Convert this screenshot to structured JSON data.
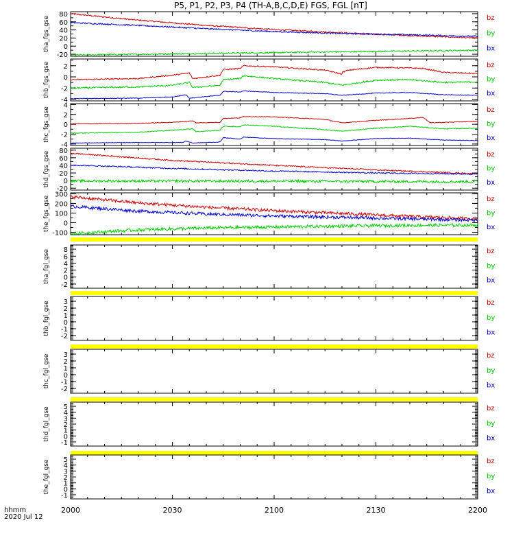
{
  "chart_data": {
    "type": "line",
    "title": "P5, P1, P2, P3, P4 (TH-A,B,C,D,E) FGS, FGL [nT]",
    "xlabel": "hhmm",
    "date_label": "2020 Jul 12",
    "x_ticks": [
      "2000",
      "2030",
      "2100",
      "2130",
      "2200"
    ],
    "x_range_minutes": [
      0,
      120
    ],
    "legend": [
      {
        "name": "bz",
        "color": "#cc0000"
      },
      {
        "name": "by",
        "color": "#00cc00"
      },
      {
        "name": "bx",
        "color": "#0000cc"
      }
    ],
    "panels": [
      {
        "ylabel": "tha_fgs_gse",
        "ylim": [
          -25,
          85
        ],
        "yticks": [
          "80",
          "60",
          "40",
          "20",
          "0",
          "-20"
        ],
        "yticks_val": [
          80,
          60,
          40,
          20,
          0,
          -20
        ],
        "series": [
          {
            "name": "bz",
            "color": "#cc0000",
            "noise": 0.2,
            "x": [
              0,
              20,
              40,
              60,
              80,
              100,
              120
            ],
            "y": [
              80,
              64,
              51,
              41,
              33,
              26,
              20
            ]
          },
          {
            "name": "by",
            "color": "#00cc00",
            "noise": 0.2,
            "x": [
              0,
              120
            ],
            "y": [
              -22,
              -10
            ]
          },
          {
            "name": "bx",
            "color": "#0000cc",
            "noise": 0.2,
            "x": [
              0,
              20,
              40,
              60,
              80,
              100,
              120
            ],
            "y": [
              58,
              51,
              43,
              36,
              31,
              28,
              24
            ]
          }
        ]
      },
      {
        "ylabel": "thb_fgs_gse",
        "ylim": [
          -4.3,
          3.2
        ],
        "yticks": [
          "2",
          "0",
          "-2",
          "-4"
        ],
        "yticks_val": [
          2,
          0,
          -2,
          -4
        ],
        "series": [
          {
            "name": "bz",
            "color": "#cc0000",
            "noise": 0.18,
            "x": [
              0,
              20,
              30,
              35,
              36,
              44,
              45,
              50,
              51,
              60,
              75,
              80,
              76,
              82,
              90,
              100,
              104,
              110,
              120
            ],
            "y": [
              -0.5,
              -0.3,
              0.3,
              0.7,
              -0.3,
              0.3,
              1.3,
              1.5,
              2.0,
              1.8,
              1.2,
              0.5,
              0.1,
              1.2,
              1.7,
              1.6,
              1.5,
              0.8,
              0.6
            ]
          },
          {
            "name": "by",
            "color": "#00cc00",
            "noise": 0.22,
            "x": [
              0,
              20,
              30,
              35,
              36,
              44,
              45,
              50,
              51,
              60,
              75,
              80,
              90,
              100,
              110,
              120
            ],
            "y": [
              -2.0,
              -1.8,
              -1.5,
              -1.0,
              -1.9,
              -1.5,
              -0.5,
              -0.3,
              0.2,
              -0.3,
              -1.0,
              -1.5,
              -0.6,
              -0.5,
              -1.0,
              -0.9
            ]
          },
          {
            "name": "bx",
            "color": "#0000cc",
            "noise": 0.1,
            "x": [
              0,
              20,
              30,
              34,
              35,
              44,
              45,
              50,
              51,
              60,
              75,
              80,
              90,
              100,
              110,
              120
            ],
            "y": [
              -3.9,
              -3.8,
              -3.6,
              -3.2,
              -3.8,
              -3.3,
              -2.6,
              -2.7,
              -2.5,
              -2.8,
              -3.0,
              -3.3,
              -2.9,
              -2.8,
              -3.2,
              -3.3
            ]
          }
        ]
      },
      {
        "ylabel": "thc_fgs_gse",
        "ylim": [
          -4.3,
          4.2
        ],
        "yticks": [
          "4",
          "2",
          "0",
          "-2",
          "-4"
        ],
        "yticks_val": [
          4,
          2,
          0,
          -2,
          -4
        ],
        "series": [
          {
            "name": "bz",
            "color": "#cc0000",
            "noise": 0.1,
            "x": [
              0,
              20,
              30,
              36,
              37,
              44,
              45,
              50,
              51,
              60,
              75,
              80,
              90,
              100,
              104,
              106,
              110,
              120
            ],
            "y": [
              0.1,
              0.2,
              0.4,
              0.7,
              0.3,
              0.4,
              1.2,
              1.3,
              1.6,
              1.5,
              1.0,
              0.3,
              0.8,
              1.2,
              1.4,
              0.3,
              0.4,
              0.6
            ]
          },
          {
            "name": "by",
            "color": "#00cc00",
            "noise": 0.12,
            "x": [
              0,
              20,
              30,
              36,
              37,
              44,
              45,
              50,
              51,
              60,
              75,
              80,
              90,
              100,
              110,
              120
            ],
            "y": [
              -1.8,
              -1.6,
              -1.2,
              -0.9,
              -1.5,
              -1.2,
              -0.4,
              -0.5,
              -0.1,
              -0.4,
              -1.1,
              -1.4,
              -0.8,
              -0.4,
              -0.9,
              -0.8
            ]
          },
          {
            "name": "bx",
            "color": "#0000cc",
            "noise": 0.08,
            "x": [
              0,
              20,
              33,
              34,
              36,
              44,
              45,
              50,
              51,
              60,
              75,
              80,
              90,
              100,
              110,
              120
            ],
            "y": [
              -3.8,
              -3.7,
              -3.7,
              -3.4,
              -3.8,
              -3.6,
              -2.7,
              -3.0,
              -2.6,
              -2.9,
              -3.1,
              -3.4,
              -2.9,
              -2.8,
              -3.2,
              -3.3
            ]
          }
        ]
      },
      {
        "ylabel": "thd_fgs_gse",
        "ylim": [
          -25,
          85
        ],
        "yticks": [
          "80",
          "60",
          "40",
          "20",
          "0",
          "-20"
        ],
        "yticks_val": [
          80,
          60,
          40,
          20,
          0,
          -20
        ],
        "series": [
          {
            "name": "bz",
            "color": "#cc0000",
            "noise": 0.2,
            "x": [
              0,
              30,
              60,
              90,
              120
            ],
            "y": [
              72,
              53,
              40,
              28,
              18
            ]
          },
          {
            "name": "by",
            "color": "#00cc00",
            "noise": 0.4,
            "x": [
              0,
              60,
              120
            ],
            "y": [
              -1,
              -1.5,
              -3
            ]
          },
          {
            "name": "bx",
            "color": "#0000cc",
            "noise": 0.2,
            "x": [
              0,
              30,
              60,
              90,
              120
            ],
            "y": [
              41,
              32,
              25,
              20,
              17
            ]
          }
        ]
      },
      {
        "ylabel": "the_fgs_gse",
        "ylim": [
          -125,
          310
        ],
        "yticks": [
          "300",
          "200",
          "100",
          "0",
          "-100"
        ],
        "yticks_val": [
          300,
          200,
          100,
          0,
          -100
        ],
        "series": [
          {
            "name": "bz",
            "color": "#cc0000",
            "noise": 0.5,
            "x": [
              0,
              20,
              40,
              60,
              80,
              100,
              120
            ],
            "y": [
              270,
              205,
              160,
              125,
              95,
              65,
              40
            ]
          },
          {
            "name": "by",
            "color": "#00cc00",
            "noise": 0.5,
            "x": [
              0,
              20,
              40,
              60,
              80,
              100,
              120
            ],
            "y": [
              -115,
              -75,
              -55,
              -45,
              -35,
              -28,
              -25
            ]
          },
          {
            "name": "bx",
            "color": "#0000cc",
            "noise": 0.5,
            "x": [
              0,
              20,
              40,
              60,
              80,
              100,
              120
            ],
            "y": [
              170,
              120,
              90,
              70,
              55,
              40,
              25
            ]
          }
        ]
      },
      {
        "ylabel": "tha_fgl_gse",
        "ylim": [
          -3.2,
          9.2
        ],
        "yticks": [
          "8",
          "6",
          "4",
          "2",
          "0",
          "-2"
        ],
        "yticks_val": [
          8,
          6,
          4,
          2,
          0,
          -2
        ],
        "series": []
      },
      {
        "ylabel": "thb_fgl_gse",
        "ylim": [
          -2.7,
          3.7
        ],
        "yticks": [
          "3",
          "2",
          "1",
          "0",
          "-1",
          "-2"
        ],
        "yticks_val": [
          3,
          2,
          1,
          0,
          -1,
          -2
        ],
        "series": []
      },
      {
        "ylabel": "thc_fgl_gse",
        "ylim": [
          -2.7,
          3.7
        ],
        "yticks": [
          "3",
          "2",
          "1",
          "0",
          "-1",
          "-2"
        ],
        "yticks_val": [
          3,
          2,
          1,
          0,
          -1,
          -2
        ],
        "series": []
      },
      {
        "ylabel": "thd_fgl_gse",
        "ylim": [
          -1.7,
          5.7
        ],
        "yticks": [
          "5",
          "4",
          "3",
          "2",
          "1",
          "0",
          "-1"
        ],
        "yticks_val": [
          5,
          4,
          3,
          2,
          1,
          0,
          -1
        ],
        "series": []
      },
      {
        "ylabel": "the_fgl_gse",
        "ylim": [
          -1.7,
          5.7
        ],
        "yticks": [
          "5",
          "4",
          "3",
          "2",
          "1",
          "0",
          "-1"
        ],
        "yticks_val": [
          5,
          4,
          3,
          2,
          1,
          0,
          -1
        ],
        "series": []
      }
    ]
  }
}
